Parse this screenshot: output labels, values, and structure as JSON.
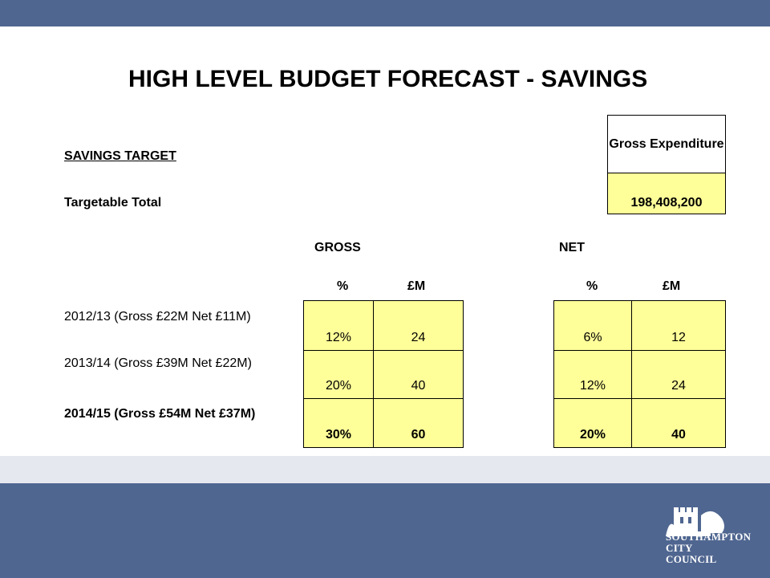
{
  "title": "HIGH LEVEL BUDGET FORECAST - SAVINGS",
  "savings_target_label": "SAVINGS TARGET",
  "gross_expenditure_header": "Gross Expenditure",
  "targetable_total_label": "Targetable Total",
  "targetable_total_value": "198,408,200",
  "group_headers": {
    "gross": "GROSS",
    "net": "NET"
  },
  "column_headers": {
    "gross_pct": "%",
    "gross_m": "£M",
    "net_pct": "%",
    "net_m": "£M"
  },
  "rows": [
    {
      "label": "2012/13 (Gross £22M Net £11M)",
      "gross_pct": "12%",
      "gross_m": "24",
      "net_pct": "6%",
      "net_m": "12",
      "bold": false
    },
    {
      "label": "2013/14 (Gross £39M Net £22M)",
      "gross_pct": "20%",
      "gross_m": "40",
      "net_pct": "12%",
      "net_m": "24",
      "bold": false
    },
    {
      "label": "2014/15 (Gross £54M Net £37M)",
      "gross_pct": "30%",
      "gross_m": "60",
      "net_pct": "20%",
      "net_m": "40",
      "bold": true
    }
  ],
  "logo": {
    "line1": "SOUTHAMPTON",
    "line2": "CITY COUNCIL",
    "icon": "castle-logo-icon"
  },
  "colors": {
    "band": "#4f6690",
    "light_band": "#e5e8ef",
    "cell_fill": "#ffff99"
  }
}
